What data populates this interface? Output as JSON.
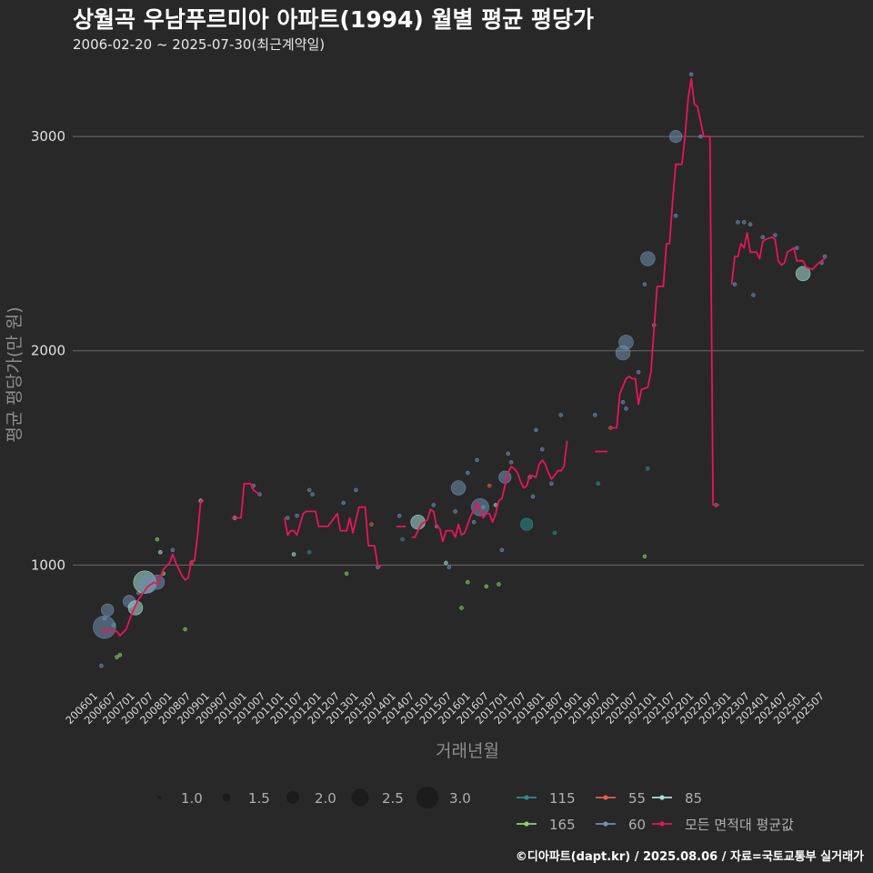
{
  "title": "상월곡 우남푸르미아 아파트(1994) 월별 평균 평당가",
  "subtitle": "2006-02-20 ~ 2025-07-30(최근계약일)",
  "credit": "©디아파트(dapt.kr) / 2025.08.06 / 자료=국토교통부 실거래가",
  "colors": {
    "background": "#282828",
    "grid": "#6a6a6a",
    "avg_line": "#e8155a",
    "s115": "#2e8c8c",
    "s55": "#e0604a",
    "s85": "#a8e0d8",
    "s165": "#8fd070",
    "s60": "#7090b0"
  },
  "chart_data": {
    "type": "line",
    "xlabel": "거래년월",
    "ylabel": "평균 평당가(만 원)",
    "x_range": [
      "2006-01",
      "2025-07"
    ],
    "ylim": [
      420,
      3340
    ],
    "y_ticks": [
      1000,
      2000,
      3000
    ],
    "x_ticks": [
      "200601",
      "200607",
      "200701",
      "200707",
      "200801",
      "200807",
      "200901",
      "200907",
      "201001",
      "201007",
      "201101",
      "201107",
      "201201",
      "201207",
      "201301",
      "201307",
      "201401",
      "201407",
      "201501",
      "201507",
      "201601",
      "201607",
      "201701",
      "201707",
      "201801",
      "201807",
      "201901",
      "201907",
      "202001",
      "202007",
      "202101",
      "202107",
      "202201",
      "202207",
      "202301",
      "202307",
      "202401",
      "202407",
      "202501",
      "202507"
    ],
    "grid": "horizontal",
    "size_legend": {
      "values": [
        1.0,
        1.5,
        2.0,
        2.5,
        3.0
      ],
      "labels": [
        "1.0",
        "1.5",
        "2.0",
        "2.5",
        "3.0"
      ]
    },
    "series_legend": [
      {
        "name": "115",
        "color": "#2e8c8c"
      },
      {
        "name": "55",
        "color": "#e0604a"
      },
      {
        "name": "85",
        "color": "#a8e0d8"
      },
      {
        "name": "165",
        "color": "#8fd070"
      },
      {
        "name": "60",
        "color": "#7090b0"
      },
      {
        "name": "모든 면적대 평균값",
        "color": "#e8155a"
      }
    ],
    "avg_segments": [
      [
        [
          "2006-02",
          680
        ],
        [
          "2006-03",
          700
        ],
        [
          "2006-05",
          695
        ],
        [
          "2006-07",
          690
        ],
        [
          "2006-08",
          670
        ],
        [
          "2006-10",
          700
        ],
        [
          "2006-12",
          780
        ],
        [
          "2007-02",
          840
        ],
        [
          "2007-04",
          880
        ],
        [
          "2007-05",
          900
        ],
        [
          "2007-07",
          920
        ],
        [
          "2007-08",
          910
        ],
        [
          "2007-10",
          980
        ],
        [
          "2007-12",
          1010
        ],
        [
          "2008-01",
          1050
        ],
        [
          "2008-02",
          1010
        ],
        [
          "2008-04",
          950
        ],
        [
          "2008-05",
          930
        ],
        [
          "2008-06",
          940
        ],
        [
          "2008-07",
          1020
        ],
        [
          "2008-08",
          1020
        ],
        [
          "2008-09",
          1140
        ],
        [
          "2008-10",
          1300
        ],
        [
          "2008-11",
          1300
        ]
      ],
      [
        [
          "2009-08",
          1220
        ],
        [
          "2009-11",
          1220
        ],
        [
          "2009-12",
          1380
        ],
        [
          "2010-02",
          1380
        ],
        [
          "2010-03",
          1350
        ],
        [
          "2010-04",
          1340
        ],
        [
          "2010-05",
          1330
        ]
      ],
      [
        [
          "2011-01",
          1220
        ],
        [
          "2011-02",
          1140
        ],
        [
          "2011-03",
          1160
        ],
        [
          "2011-04",
          1160
        ],
        [
          "2011-05",
          1140
        ],
        [
          "2011-07",
          1240
        ],
        [
          "2011-08",
          1250
        ],
        [
          "2011-11",
          1250
        ],
        [
          "2011-12",
          1180
        ],
        [
          "2012-03",
          1180
        ],
        [
          "2012-04",
          1200
        ],
        [
          "2012-06",
          1240
        ],
        [
          "2012-07",
          1160
        ],
        [
          "2012-09",
          1160
        ],
        [
          "2012-10",
          1220
        ],
        [
          "2012-11",
          1150
        ],
        [
          "2013-01",
          1270
        ],
        [
          "2013-03",
          1270
        ],
        [
          "2013-04",
          1090
        ],
        [
          "2013-06",
          1090
        ],
        [
          "2013-07",
          1000
        ],
        [
          "2013-08",
          990
        ]
      ],
      [
        [
          "2014-01",
          1180
        ],
        [
          "2014-04",
          1180
        ]
      ],
      [
        [
          "2014-06",
          1130
        ],
        [
          "2014-07",
          1130
        ],
        [
          "2014-09",
          1190
        ],
        [
          "2014-11",
          1210
        ],
        [
          "2014-12",
          1260
        ],
        [
          "2015-01",
          1250
        ],
        [
          "2015-02",
          1180
        ],
        [
          "2015-03",
          1170
        ],
        [
          "2015-04",
          1110
        ],
        [
          "2015-05",
          1160
        ],
        [
          "2015-07",
          1160
        ],
        [
          "2015-08",
          1130
        ],
        [
          "2015-09",
          1190
        ],
        [
          "2015-10",
          1140
        ],
        [
          "2015-11",
          1150
        ],
        [
          "2016-01",
          1230
        ],
        [
          "2016-02",
          1260
        ],
        [
          "2016-03",
          1290
        ],
        [
          "2016-04",
          1250
        ],
        [
          "2016-05",
          1220
        ],
        [
          "2016-06",
          1240
        ],
        [
          "2016-07",
          1240
        ],
        [
          "2016-08",
          1200
        ],
        [
          "2016-09",
          1240
        ],
        [
          "2016-10",
          1300
        ],
        [
          "2016-11",
          1310
        ],
        [
          "2017-01",
          1430
        ],
        [
          "2017-02",
          1460
        ],
        [
          "2017-03",
          1450
        ],
        [
          "2017-04",
          1430
        ],
        [
          "2017-05",
          1390
        ],
        [
          "2017-06",
          1360
        ],
        [
          "2017-07",
          1370
        ],
        [
          "2017-08",
          1420
        ],
        [
          "2017-10",
          1410
        ],
        [
          "2017-11",
          1470
        ],
        [
          "2017-12",
          1490
        ],
        [
          "2018-01",
          1470
        ],
        [
          "2018-02",
          1430
        ],
        [
          "2018-03",
          1400
        ],
        [
          "2018-05",
          1440
        ],
        [
          "2018-06",
          1440
        ],
        [
          "2018-07",
          1460
        ],
        [
          "2018-08",
          1580
        ]
      ],
      [
        [
          "2019-05",
          1530
        ],
        [
          "2019-09",
          1530
        ]
      ],
      [
        [
          "2019-10",
          1640
        ],
        [
          "2019-12",
          1640
        ],
        [
          "2020-01",
          1800
        ],
        [
          "2020-03",
          1870
        ],
        [
          "2020-04",
          1880
        ],
        [
          "2020-05",
          1870
        ],
        [
          "2020-06",
          1870
        ],
        [
          "2020-07",
          1750
        ],
        [
          "2020-08",
          1820
        ],
        [
          "2020-10",
          1830
        ],
        [
          "2020-11",
          1900
        ],
        [
          "2021-01",
          2300
        ],
        [
          "2021-03",
          2300
        ],
        [
          "2021-04",
          2500
        ],
        [
          "2021-05",
          2500
        ],
        [
          "2021-06",
          2700
        ],
        [
          "2021-07",
          2870
        ],
        [
          "2021-09",
          2870
        ],
        [
          "2021-10",
          3000
        ],
        [
          "2021-11",
          3180
        ],
        [
          "2021-12",
          3270
        ],
        [
          "2022-01",
          3150
        ],
        [
          "2022-02",
          3140
        ],
        [
          "2022-04",
          3000
        ],
        [
          "2022-06",
          3000
        ],
        [
          "2022-07",
          1280
        ],
        [
          "2022-09",
          1280
        ]
      ],
      [
        [
          "2023-01",
          2310
        ],
        [
          "2023-02",
          2440
        ],
        [
          "2023-03",
          2440
        ],
        [
          "2023-04",
          2500
        ],
        [
          "2023-05",
          2480
        ],
        [
          "2023-06",
          2550
        ],
        [
          "2023-07",
          2460
        ],
        [
          "2023-09",
          2460
        ],
        [
          "2023-10",
          2430
        ],
        [
          "2023-11",
          2510
        ],
        [
          "2023-12",
          2520
        ],
        [
          "2024-02",
          2530
        ],
        [
          "2024-03",
          2520
        ],
        [
          "2024-04",
          2420
        ],
        [
          "2024-05",
          2400
        ],
        [
          "2024-06",
          2410
        ],
        [
          "2024-07",
          2460
        ],
        [
          "2024-09",
          2480
        ],
        [
          "2024-10",
          2420
        ],
        [
          "2024-12",
          2420
        ],
        [
          "2025-01",
          2390
        ],
        [
          "2025-03",
          2380
        ],
        [
          "2025-05",
          2410
        ],
        [
          "2025-07",
          2430
        ]
      ]
    ],
    "points": [
      {
        "x": "2006-03",
        "y": 710,
        "s": 3.0,
        "c": "s60"
      },
      {
        "x": "2006-04",
        "y": 790,
        "s": 2.0,
        "c": "s60"
      },
      {
        "x": "2006-03",
        "y": 750,
        "s": 1.0,
        "c": "s60"
      },
      {
        "x": "2006-02",
        "y": 530,
        "s": 1.0,
        "c": "s60"
      },
      {
        "x": "2006-06",
        "y": 720,
        "s": 1.2,
        "c": "s60"
      },
      {
        "x": "2006-07",
        "y": 570,
        "s": 1.0,
        "c": "s165"
      },
      {
        "x": "2006-08",
        "y": 580,
        "s": 1.0,
        "c": "s165"
      },
      {
        "x": "2006-11",
        "y": 830,
        "s": 2.0,
        "c": "s60"
      },
      {
        "x": "2007-01",
        "y": 800,
        "s": 2.2,
        "c": "s85"
      },
      {
        "x": "2007-02",
        "y": 870,
        "s": 1.0,
        "c": "s60"
      },
      {
        "x": "2007-04",
        "y": 920,
        "s": 3.0,
        "c": "s85"
      },
      {
        "x": "2007-05",
        "y": 910,
        "s": 2.5,
        "c": "s60"
      },
      {
        "x": "2007-08",
        "y": 920,
        "s": 2.2,
        "c": "s60"
      },
      {
        "x": "2007-08",
        "y": 1120,
        "s": 1.0,
        "c": "s165"
      },
      {
        "x": "2007-09",
        "y": 1060,
        "s": 1.0,
        "c": "s85"
      },
      {
        "x": "2007-10",
        "y": 960,
        "s": 1.0,
        "c": "s165"
      },
      {
        "x": "2008-01",
        "y": 1070,
        "s": 1.0,
        "c": "s60"
      },
      {
        "x": "2008-05",
        "y": 700,
        "s": 1.0,
        "c": "s165"
      },
      {
        "x": "2008-07",
        "y": 1010,
        "s": 1.0,
        "c": "s55"
      },
      {
        "x": "2008-10",
        "y": 1300,
        "s": 1.0,
        "c": "s85"
      },
      {
        "x": "2009-09",
        "y": 1220,
        "s": 1.0,
        "c": "s85"
      },
      {
        "x": "2010-03",
        "y": 1370,
        "s": 1.0,
        "c": "s60"
      },
      {
        "x": "2010-05",
        "y": 1330,
        "s": 1.0,
        "c": "s60"
      },
      {
        "x": "2011-02",
        "y": 1220,
        "s": 1.0,
        "c": "s60"
      },
      {
        "x": "2011-05",
        "y": 1230,
        "s": 1.0,
        "c": "s60"
      },
      {
        "x": "2011-04",
        "y": 1050,
        "s": 1.0,
        "c": "s85"
      },
      {
        "x": "2011-09",
        "y": 1350,
        "s": 1.0,
        "c": "s60"
      },
      {
        "x": "2011-10",
        "y": 1330,
        "s": 1.0,
        "c": "s60"
      },
      {
        "x": "2011-09",
        "y": 1060,
        "s": 1.0,
        "c": "s115"
      },
      {
        "x": "2012-08",
        "y": 1290,
        "s": 1.0,
        "c": "s60"
      },
      {
        "x": "2012-09",
        "y": 960,
        "s": 1.0,
        "c": "s165"
      },
      {
        "x": "2012-12",
        "y": 1350,
        "s": 1.0,
        "c": "s60"
      },
      {
        "x": "2013-05",
        "y": 1190,
        "s": 1.0,
        "c": "s55"
      },
      {
        "x": "2013-07",
        "y": 990,
        "s": 1.0,
        "c": "s60"
      },
      {
        "x": "2014-02",
        "y": 1230,
        "s": 1.0,
        "c": "s60"
      },
      {
        "x": "2014-03",
        "y": 1120,
        "s": 1.0,
        "c": "s115"
      },
      {
        "x": "2014-08",
        "y": 1200,
        "s": 2.2,
        "c": "s85"
      },
      {
        "x": "2015-01",
        "y": 1280,
        "s": 1.0,
        "c": "s60"
      },
      {
        "x": "2015-02",
        "y": 1180,
        "s": 1.0,
        "c": "s60"
      },
      {
        "x": "2015-05",
        "y": 1010,
        "s": 1.0,
        "c": "s85"
      },
      {
        "x": "2015-06",
        "y": 990,
        "s": 1.0,
        "c": "s60"
      },
      {
        "x": "2015-08",
        "y": 1250,
        "s": 1.0,
        "c": "s60"
      },
      {
        "x": "2015-09",
        "y": 1360,
        "s": 2.2,
        "c": "s60"
      },
      {
        "x": "2015-10",
        "y": 800,
        "s": 1.0,
        "c": "s165"
      },
      {
        "x": "2015-12",
        "y": 920,
        "s": 1.0,
        "c": "s165"
      },
      {
        "x": "2015-12",
        "y": 1430,
        "s": 1.0,
        "c": "s60"
      },
      {
        "x": "2016-02",
        "y": 1200,
        "s": 1.0,
        "c": "s60"
      },
      {
        "x": "2016-03",
        "y": 1490,
        "s": 1.0,
        "c": "s60"
      },
      {
        "x": "2016-04",
        "y": 1270,
        "s": 2.5,
        "c": "s60"
      },
      {
        "x": "2016-05",
        "y": 1270,
        "s": 1.0,
        "c": "s60"
      },
      {
        "x": "2016-06",
        "y": 900,
        "s": 1.0,
        "c": "s165"
      },
      {
        "x": "2016-07",
        "y": 1370,
        "s": 1.0,
        "c": "s55"
      },
      {
        "x": "2016-09",
        "y": 1280,
        "s": 1.0,
        "c": "s85"
      },
      {
        "x": "2016-10",
        "y": 910,
        "s": 1.0,
        "c": "s165"
      },
      {
        "x": "2016-11",
        "y": 1070,
        "s": 1.0,
        "c": "s60"
      },
      {
        "x": "2016-12",
        "y": 1410,
        "s": 2.0,
        "c": "s60"
      },
      {
        "x": "2017-01",
        "y": 1520,
        "s": 1.0,
        "c": "s60"
      },
      {
        "x": "2017-02",
        "y": 1480,
        "s": 1.0,
        "c": "s60"
      },
      {
        "x": "2017-07",
        "y": 1190,
        "s": 2.0,
        "c": "s115"
      },
      {
        "x": "2017-08",
        "y": 1410,
        "s": 1.0,
        "c": "s60"
      },
      {
        "x": "2017-09",
        "y": 1320,
        "s": 1.0,
        "c": "s60"
      },
      {
        "x": "2017-10",
        "y": 1630,
        "s": 1.0,
        "c": "s60"
      },
      {
        "x": "2017-12",
        "y": 1540,
        "s": 1.0,
        "c": "s60"
      },
      {
        "x": "2018-03",
        "y": 1380,
        "s": 1.0,
        "c": "s60"
      },
      {
        "x": "2018-04",
        "y": 1150,
        "s": 1.0,
        "c": "s115"
      },
      {
        "x": "2018-06",
        "y": 1700,
        "s": 1.0,
        "c": "s60"
      },
      {
        "x": "2019-05",
        "y": 1700,
        "s": 1.0,
        "c": "s60"
      },
      {
        "x": "2019-06",
        "y": 1380,
        "s": 1.0,
        "c": "s115"
      },
      {
        "x": "2019-10",
        "y": 1640,
        "s": 1.0,
        "c": "s55"
      },
      {
        "x": "2020-02",
        "y": 1990,
        "s": 2.2,
        "c": "s60"
      },
      {
        "x": "2020-03",
        "y": 2040,
        "s": 2.2,
        "c": "s60"
      },
      {
        "x": "2020-02",
        "y": 1760,
        "s": 1.0,
        "c": "s60"
      },
      {
        "x": "2020-03",
        "y": 1730,
        "s": 1.0,
        "c": "s60"
      },
      {
        "x": "2020-07",
        "y": 1900,
        "s": 1.0,
        "c": "s60"
      },
      {
        "x": "2020-09",
        "y": 2310,
        "s": 1.0,
        "c": "s60"
      },
      {
        "x": "2020-10",
        "y": 2430,
        "s": 2.2,
        "c": "s60"
      },
      {
        "x": "2020-10",
        "y": 1450,
        "s": 1.0,
        "c": "s115"
      },
      {
        "x": "2020-09",
        "y": 1040,
        "s": 1.0,
        "c": "s165"
      },
      {
        "x": "2020-12",
        "y": 2120,
        "s": 1.0,
        "c": "s60"
      },
      {
        "x": "2021-07",
        "y": 3000,
        "s": 2.0,
        "c": "s60"
      },
      {
        "x": "2021-07",
        "y": 2630,
        "s": 1.0,
        "c": "s60"
      },
      {
        "x": "2021-12",
        "y": 3290,
        "s": 1.0,
        "c": "s60"
      },
      {
        "x": "2022-03",
        "y": 3000,
        "s": 1.0,
        "c": "s60"
      },
      {
        "x": "2022-08",
        "y": 1280,
        "s": 1.0,
        "c": "s60"
      },
      {
        "x": "2023-02",
        "y": 2310,
        "s": 1.0,
        "c": "s60"
      },
      {
        "x": "2023-03",
        "y": 2600,
        "s": 1.0,
        "c": "s60"
      },
      {
        "x": "2023-05",
        "y": 2600,
        "s": 1.0,
        "c": "s60"
      },
      {
        "x": "2023-07",
        "y": 2590,
        "s": 1.0,
        "c": "s60"
      },
      {
        "x": "2023-08",
        "y": 2260,
        "s": 1.0,
        "c": "s60"
      },
      {
        "x": "2023-11",
        "y": 2530,
        "s": 1.0,
        "c": "s60"
      },
      {
        "x": "2024-03",
        "y": 2540,
        "s": 1.0,
        "c": "s60"
      },
      {
        "x": "2024-10",
        "y": 2480,
        "s": 1.0,
        "c": "s60"
      },
      {
        "x": "2024-12",
        "y": 2360,
        "s": 2.2,
        "c": "s85"
      },
      {
        "x": "2025-06",
        "y": 2410,
        "s": 1.0,
        "c": "s60"
      },
      {
        "x": "2025-07",
        "y": 2440,
        "s": 1.0,
        "c": "s60"
      }
    ]
  }
}
